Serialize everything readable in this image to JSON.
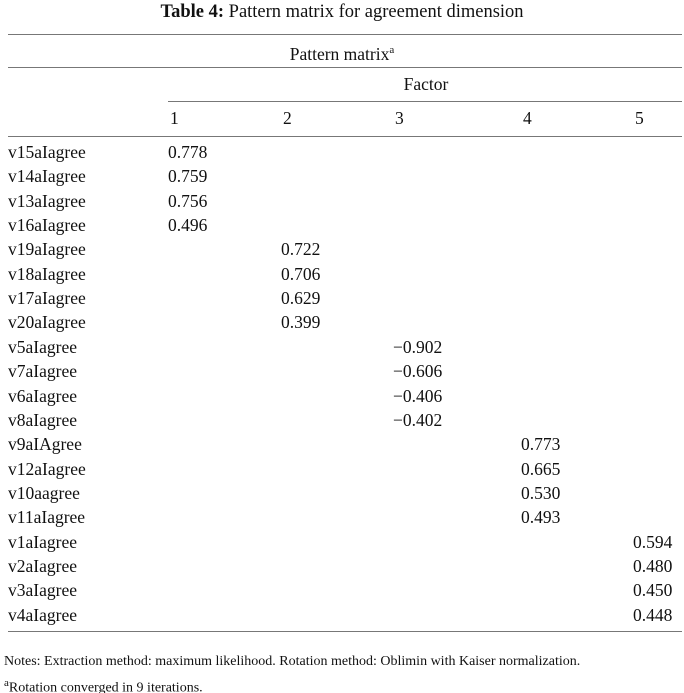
{
  "title": {
    "label": "Table 4:",
    "text": "Pattern matrix for agreement dimension"
  },
  "table": {
    "caption": "Pattern matrix",
    "caption_mark": "a",
    "group_header": "Factor",
    "columns": [
      "1",
      "2",
      "3",
      "4",
      "5"
    ],
    "rows": [
      {
        "label": "v15aIagree",
        "cells": [
          "0.778",
          null,
          null,
          null,
          null
        ]
      },
      {
        "label": "v14aIagree",
        "cells": [
          "0.759",
          null,
          null,
          null,
          null
        ]
      },
      {
        "label": "v13aIagree",
        "cells": [
          "0.756",
          null,
          null,
          null,
          null
        ]
      },
      {
        "label": "v16aIagree",
        "cells": [
          "0.496",
          null,
          null,
          null,
          null
        ]
      },
      {
        "label": "v19aIagree",
        "cells": [
          null,
          "0.722",
          null,
          null,
          null
        ]
      },
      {
        "label": "v18aIagree",
        "cells": [
          null,
          "0.706",
          null,
          null,
          null
        ]
      },
      {
        "label": "v17aIagree",
        "cells": [
          null,
          "0.629",
          null,
          null,
          null
        ]
      },
      {
        "label": "v20aIagree",
        "cells": [
          null,
          "0.399",
          null,
          null,
          null
        ]
      },
      {
        "label": "v5aIagree",
        "cells": [
          null,
          null,
          "−0.902",
          null,
          null
        ]
      },
      {
        "label": "v7aIagree",
        "cells": [
          null,
          null,
          "−0.606",
          null,
          null
        ]
      },
      {
        "label": "v6aIagree",
        "cells": [
          null,
          null,
          "−0.406",
          null,
          null
        ]
      },
      {
        "label": "v8aIagree",
        "cells": [
          null,
          null,
          "−0.402",
          null,
          null
        ]
      },
      {
        "label": "v9aIAgree",
        "cells": [
          null,
          null,
          null,
          "0.773",
          null
        ]
      },
      {
        "label": "v12aIagree",
        "cells": [
          null,
          null,
          null,
          "0.665",
          null
        ]
      },
      {
        "label": "v10aagree",
        "cells": [
          null,
          null,
          null,
          "0.530",
          null
        ]
      },
      {
        "label": "v11aIagree",
        "cells": [
          null,
          null,
          null,
          "0.493",
          null
        ]
      },
      {
        "label": "v1aIagree",
        "cells": [
          null,
          null,
          null,
          null,
          "0.594"
        ]
      },
      {
        "label": "v2aIagree",
        "cells": [
          null,
          null,
          null,
          null,
          "0.480"
        ]
      },
      {
        "label": "v3aIagree",
        "cells": [
          null,
          null,
          null,
          null,
          "0.450"
        ]
      },
      {
        "label": "v4aIagree",
        "cells": [
          null,
          null,
          null,
          null,
          "0.448"
        ]
      }
    ]
  },
  "notes": {
    "text": "Notes: Extraction method: maximum likelihood. Rotation method: Oblimin with Kaiser normalization.",
    "footnote_mark": "a",
    "footnote": "Rotation converged in 9 iterations."
  }
}
